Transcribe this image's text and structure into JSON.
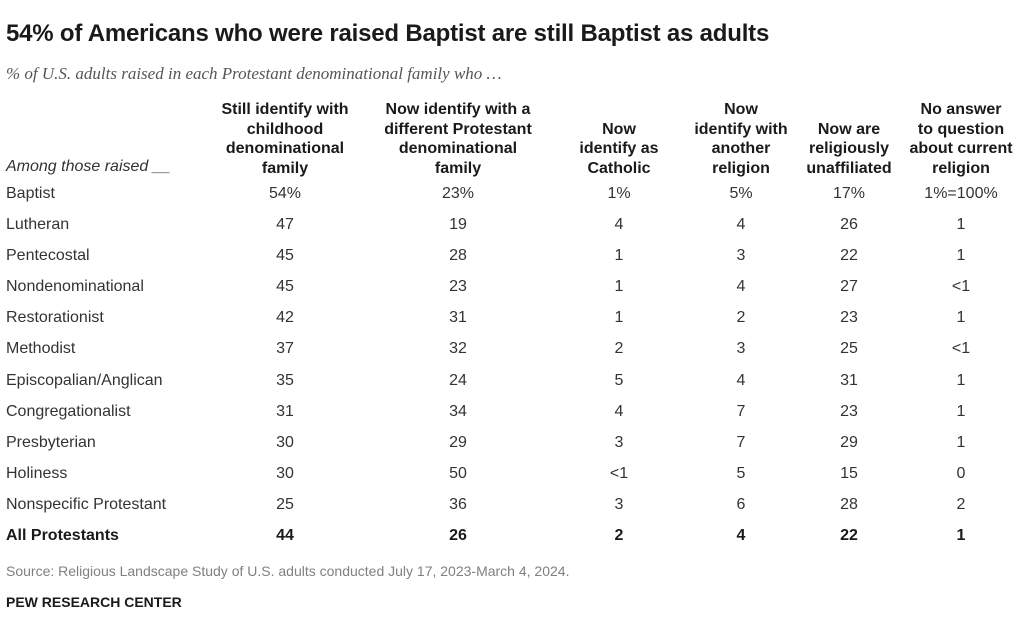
{
  "title": "54% of Americans who were raised Baptist are still Baptist as adults",
  "subtitle": "% of U.S. adults raised in each Protestant denominational family who …",
  "source": "Source: Religious Landscape Study of U.S. adults conducted July 17, 2023-March 4, 2024.",
  "organization": "PEW RESEARCH CENTER",
  "chart_data": {
    "type": "table",
    "title": "54% of Americans who were raised Baptist are still Baptist as adults",
    "subtitle": "% of U.S. adults raised in each Protestant denominational family who …",
    "row_header": "Among those raised __",
    "columns": [
      [
        "Still identify with",
        "childhood",
        "denominational",
        "family"
      ],
      [
        "Now identify with a",
        "different Protestant",
        "denominational",
        "family"
      ],
      [
        "Now",
        "identify as",
        "Catholic"
      ],
      [
        "Now",
        "identify with",
        "another",
        "religion"
      ],
      [
        "Now are",
        "religiously",
        "unaffiliated"
      ],
      [
        "No answer",
        "to question",
        "about current",
        "religion"
      ]
    ],
    "rows": [
      {
        "label": "Baptist",
        "values": [
          "54%",
          "23%",
          "1%",
          "5%",
          "17%",
          "1%=100%"
        ]
      },
      {
        "label": "Lutheran",
        "values": [
          "47",
          "19",
          "4",
          "4",
          "26",
          "1"
        ]
      },
      {
        "label": "Pentecostal",
        "values": [
          "45",
          "28",
          "1",
          "3",
          "22",
          "1"
        ]
      },
      {
        "label": "Nondenominational",
        "values": [
          "45",
          "23",
          "1",
          "4",
          "27",
          "<1"
        ]
      },
      {
        "label": "Restorationist",
        "values": [
          "42",
          "31",
          "1",
          "2",
          "23",
          "1"
        ]
      },
      {
        "label": "Methodist",
        "values": [
          "37",
          "32",
          "2",
          "3",
          "25",
          "<1"
        ]
      },
      {
        "label": "Episcopalian/Anglican",
        "values": [
          "35",
          "24",
          "5",
          "4",
          "31",
          "1"
        ]
      },
      {
        "label": "Congregationalist",
        "values": [
          "31",
          "34",
          "4",
          "7",
          "23",
          "1"
        ]
      },
      {
        "label": "Presbyterian",
        "values": [
          "30",
          "29",
          "3",
          "7",
          "29",
          "1"
        ]
      },
      {
        "label": "Holiness",
        "values": [
          "30",
          "50",
          "<1",
          "5",
          "15",
          "0"
        ]
      },
      {
        "label": "Nonspecific Protestant",
        "values": [
          "25",
          "36",
          "3",
          "6",
          "28",
          "2"
        ]
      },
      {
        "label": "All Protestants",
        "values": [
          "44",
          "26",
          "2",
          "4",
          "22",
          "1"
        ],
        "total": true
      }
    ]
  }
}
